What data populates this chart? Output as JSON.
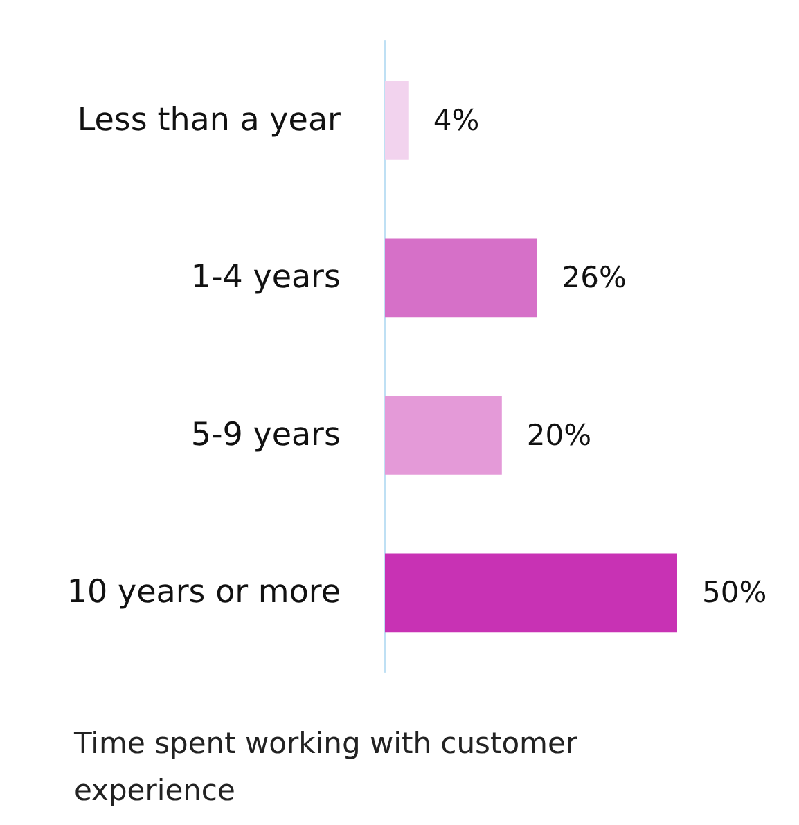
{
  "chart_data": {
    "type": "bar",
    "orientation": "horizontal",
    "xlabel": "Time spent working with customer experience",
    "categories": [
      "Less than a year",
      "1-4 years",
      "5-9 years",
      "10 years or more"
    ],
    "values": [
      4,
      26,
      20,
      50
    ],
    "colors": [
      "#f2d3ee",
      "#d670c8",
      "#e49ad8",
      "#c832b4"
    ],
    "value_labels": [
      "4%",
      "26%",
      "20%",
      "50%"
    ]
  }
}
